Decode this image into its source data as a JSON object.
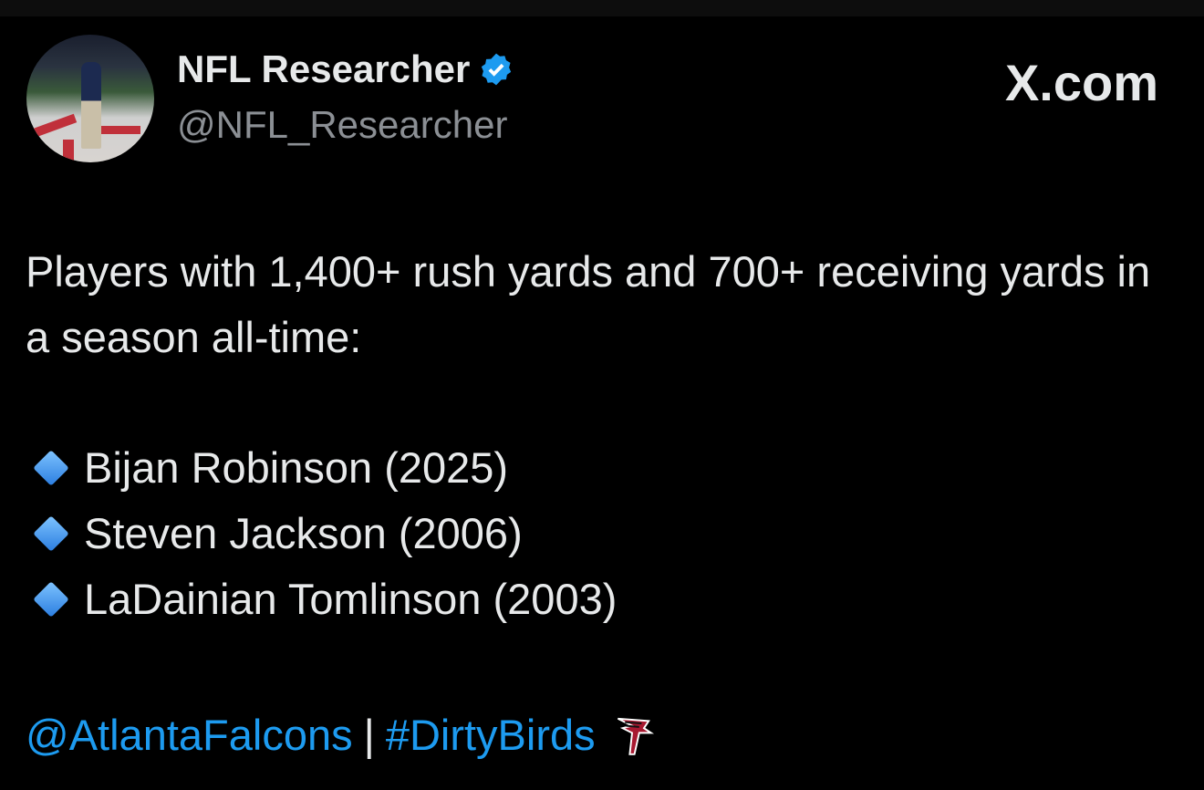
{
  "author": {
    "name": "NFL Researcher",
    "handle": "@NFL_Researcher",
    "verified": true,
    "badge_color": "#1d9bf0"
  },
  "brand": "X.com",
  "tweet": {
    "text_line1": "Players with 1,400+ rush yards and 700+ receiving yards in a season all-time:",
    "items": [
      {
        "icon": "blue-diamond-icon",
        "label": "Bijan Robinson (2025)"
      },
      {
        "icon": "blue-diamond-icon",
        "label": "Steven Jackson (2006)"
      },
      {
        "icon": "blue-diamond-icon",
        "label": "LaDainian Tomlinson (2003)"
      }
    ],
    "mention": "@AtlantaFalcons",
    "separator": "|",
    "hashtag": "#DirtyBirds",
    "emoji": "falcons-logo-icon"
  },
  "colors": {
    "background": "#000000",
    "link": "#1d9bf0",
    "text": "#e7e9ea",
    "handle": "#8b8f94"
  }
}
